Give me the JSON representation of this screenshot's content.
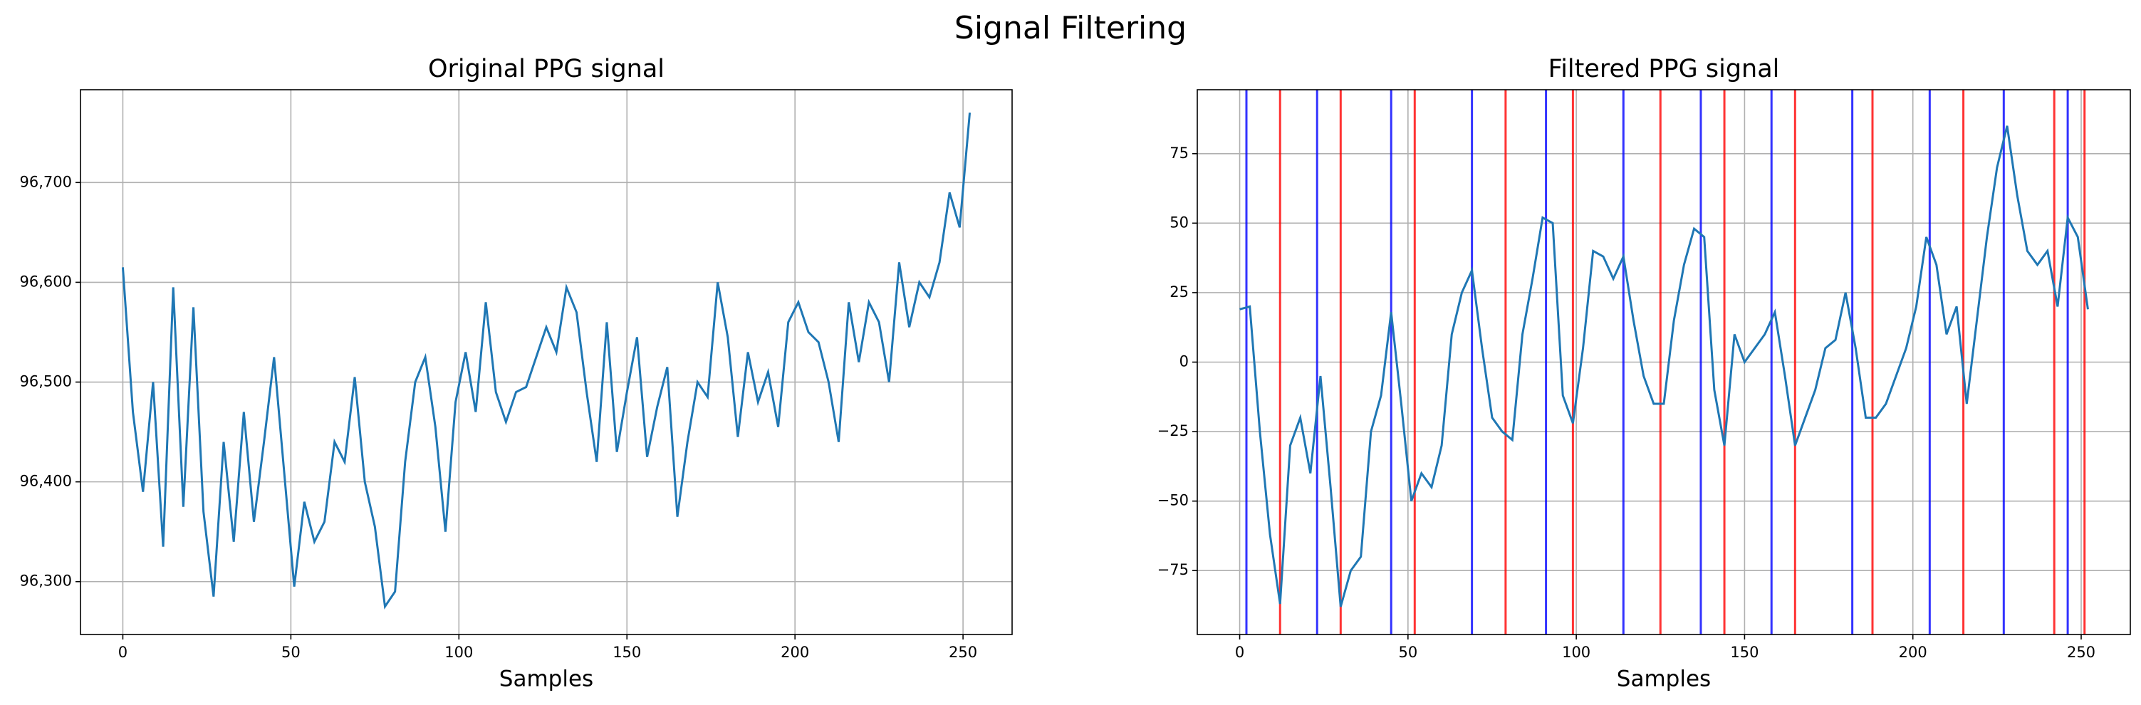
{
  "title": "Signal Filtering",
  "chart_data": [
    {
      "type": "line",
      "title": "Original PPG signal",
      "xlabel": "Samples",
      "grid": true,
      "xlim": [
        -12.6,
        264.6
      ],
      "xticks": [
        0,
        50,
        100,
        150,
        200,
        250
      ],
      "ylim": [
        96247,
        96793
      ],
      "yticks": [
        {
          "value": 96300,
          "label": "96,300"
        },
        {
          "value": 96400,
          "label": "96,400"
        },
        {
          "value": 96500,
          "label": "96,500"
        },
        {
          "value": 96600,
          "label": "96,600"
        },
        {
          "value": 96700,
          "label": "96,700"
        }
      ],
      "x": [
        0,
        3,
        6,
        9,
        12,
        15,
        18,
        21,
        24,
        27,
        30,
        33,
        36,
        39,
        42,
        45,
        48,
        51,
        54,
        57,
        60,
        63,
        66,
        69,
        72,
        75,
        78,
        81,
        84,
        87,
        90,
        93,
        96,
        99,
        102,
        105,
        108,
        111,
        114,
        117,
        120,
        123,
        126,
        129,
        132,
        135,
        138,
        141,
        144,
        147,
        150,
        153,
        156,
        159,
        162,
        165,
        168,
        171,
        174,
        177,
        180,
        183,
        186,
        189,
        192,
        195,
        198,
        201,
        204,
        207,
        210,
        213,
        216,
        219,
        222,
        225,
        228,
        231,
        234,
        237,
        240,
        243,
        246,
        249,
        252
      ],
      "series": [
        {
          "color": "#1f77b4",
          "values": [
            96615,
            96470,
            96390,
            96500,
            96335,
            96595,
            96375,
            96575,
            96370,
            96285,
            96440,
            96340,
            96470,
            96360,
            96440,
            96525,
            96410,
            96295,
            96380,
            96340,
            96360,
            96440,
            96420,
            96505,
            96400,
            96355,
            96275,
            96290,
            96420,
            96500,
            96525,
            96455,
            96350,
            96480,
            96530,
            96470,
            96580,
            96490,
            96460,
            96490,
            96495,
            96525,
            96555,
            96530,
            96595,
            96570,
            96490,
            96420,
            96560,
            96430,
            96490,
            96545,
            96425,
            96475,
            96515,
            96365,
            96440,
            96500,
            96485,
            96600,
            96545,
            96445,
            96530,
            96480,
            96510,
            96455,
            96560,
            96580,
            96550,
            96540,
            96500,
            96440,
            96580,
            96520,
            96580,
            96560,
            96500,
            96620,
            96555,
            96600,
            96585,
            96620,
            96690,
            96655,
            96770
          ]
        }
      ]
    },
    {
      "type": "line",
      "title": "Filtered PPG signal",
      "xlabel": "Samples",
      "grid": true,
      "xlim": [
        -12.6,
        264.6
      ],
      "xticks": [
        0,
        50,
        100,
        150,
        200,
        250
      ],
      "ylim": [
        -98,
        98
      ],
      "yticks": [
        {
          "value": -75,
          "label": "−75"
        },
        {
          "value": -50,
          "label": "−50"
        },
        {
          "value": -25,
          "label": "−25"
        },
        0,
        25,
        50,
        75
      ],
      "x": [
        0,
        3,
        6,
        9,
        12,
        15,
        18,
        21,
        24,
        27,
        30,
        33,
        36,
        39,
        42,
        45,
        48,
        51,
        54,
        57,
        60,
        63,
        66,
        69,
        72,
        75,
        78,
        81,
        84,
        87,
        90,
        93,
        96,
        99,
        102,
        105,
        108,
        111,
        114,
        117,
        120,
        123,
        126,
        129,
        132,
        135,
        138,
        141,
        144,
        147,
        150,
        153,
        156,
        159,
        162,
        165,
        168,
        171,
        174,
        177,
        180,
        183,
        186,
        189,
        192,
        195,
        198,
        201,
        204,
        207,
        210,
        213,
        216,
        219,
        222,
        225,
        228,
        231,
        234,
        237,
        240,
        243,
        246,
        249,
        252
      ],
      "series": [
        {
          "color": "#1f77b4",
          "values": [
            19,
            20,
            -25,
            -62,
            -87,
            -30,
            -20,
            -40,
            -5,
            -45,
            -88,
            -75,
            -70,
            -25,
            -12,
            18,
            -15,
            -50,
            -40,
            -45,
            -30,
            10,
            25,
            33,
            5,
            -20,
            -25,
            -28,
            10,
            30,
            52,
            50,
            -12,
            -22,
            5,
            40,
            38,
            30,
            38,
            15,
            -5,
            -15,
            -15,
            15,
            35,
            48,
            45,
            -10,
            -30,
            10,
            0,
            5,
            10,
            18,
            -5,
            -30,
            -20,
            -10,
            5,
            8,
            25,
            5,
            -20,
            -20,
            -15,
            -5,
            5,
            20,
            45,
            35,
            10,
            20,
            -15,
            15,
            45,
            70,
            85,
            60,
            40,
            35,
            40,
            20,
            52,
            45,
            19
          ]
        }
      ],
      "vlines": [
        {
          "color": "#0000ff",
          "x": [
            2,
            23,
            45,
            69,
            91,
            114,
            137,
            158,
            182,
            205,
            227,
            246
          ]
        },
        {
          "color": "#ff0000",
          "x": [
            12,
            30,
            52,
            79,
            99,
            125,
            144,
            165,
            188,
            215,
            242,
            251
          ]
        }
      ]
    }
  ]
}
